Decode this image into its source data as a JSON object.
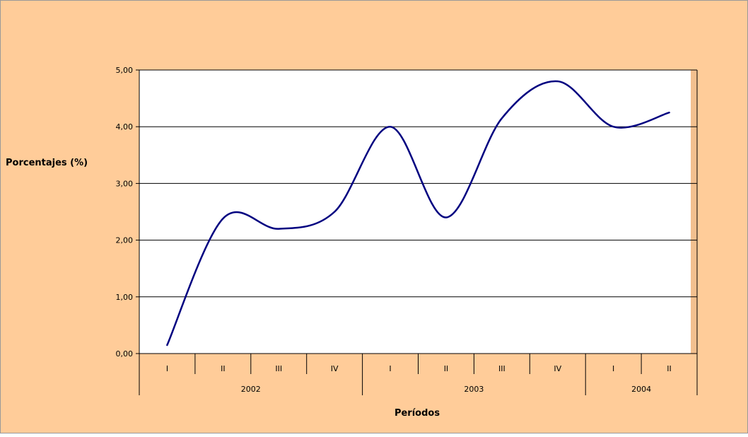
{
  "colors": {
    "chart_background": "#FFCC99",
    "plot_background": "#FFFFFF",
    "plot_right_strip": "#F2C08F",
    "line": "#000080",
    "gridline": "#000000",
    "border": "#999999"
  },
  "chart_data": {
    "type": "line",
    "title": "",
    "xlabel": "Períodos",
    "ylabel": "Porcentajes (%)",
    "ylim": [
      0,
      5
    ],
    "yticks": [
      "0,00",
      "1,00",
      "2,00",
      "3,00",
      "4,00",
      "5,00"
    ],
    "y_tick_values": [
      0,
      1,
      2,
      3,
      4,
      5
    ],
    "grid": true,
    "smoothed": true,
    "legend": "none",
    "categories": [
      {
        "year": "2002",
        "quarter": "I"
      },
      {
        "year": "2002",
        "quarter": "II"
      },
      {
        "year": "2002",
        "quarter": "III"
      },
      {
        "year": "2002",
        "quarter": "IV"
      },
      {
        "year": "2003",
        "quarter": "I"
      },
      {
        "year": "2003",
        "quarter": "II"
      },
      {
        "year": "2003",
        "quarter": "III"
      },
      {
        "year": "2003",
        "quarter": "IV"
      },
      {
        "year": "2004",
        "quarter": "I"
      },
      {
        "year": "2004",
        "quarter": "II"
      }
    ],
    "year_groups": [
      {
        "label": "2002",
        "count": 4
      },
      {
        "label": "2003",
        "count": 4
      },
      {
        "label": "2004",
        "count": 2
      }
    ],
    "series": [
      {
        "values": [
          0.15,
          2.38,
          2.2,
          2.5,
          4.0,
          2.4,
          4.15,
          4.8,
          4.0,
          4.25
        ]
      }
    ]
  }
}
